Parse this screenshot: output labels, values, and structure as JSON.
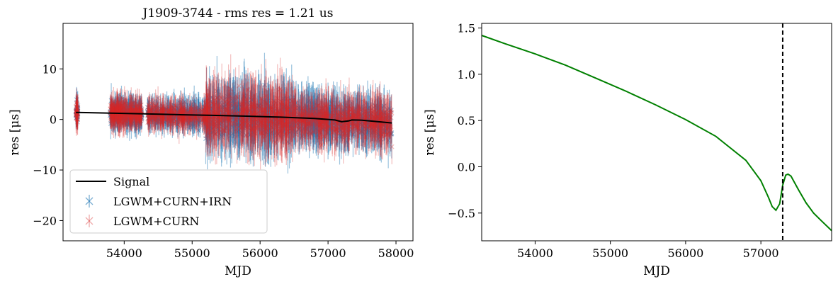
{
  "chart_data": [
    {
      "type": "scatter",
      "title": "J1909-3744 - rms res = 1.21 us",
      "xlabel": "MJD",
      "ylabel": "res [μs]",
      "xlim": [
        53100,
        58250
      ],
      "ylim": [
        -24,
        19
      ],
      "xticks": [
        54000,
        55000,
        56000,
        57000,
        58000
      ],
      "yticks": [
        -20,
        -10,
        0,
        10
      ],
      "grid": false,
      "legend": "lower-left",
      "marker": "x",
      "data_range_mjd": [
        53290,
        57940
      ],
      "scatter_rms_us": 1.21,
      "series": [
        {
          "name": "Signal",
          "kind": "line",
          "color": "#000000",
          "x": [
            53290,
            53800,
            54300,
            54800,
            55300,
            55800,
            56300,
            56800,
            57100,
            57200,
            57300,
            57350,
            57500,
            57940
          ],
          "y": [
            1.4,
            1.25,
            1.1,
            0.95,
            0.8,
            0.65,
            0.45,
            0.2,
            -0.1,
            -0.45,
            -0.3,
            -0.1,
            -0.15,
            -0.7
          ]
        },
        {
          "name": "LGWM+CURN+IRN",
          "kind": "errorbar",
          "color": "#1f77b4"
        },
        {
          "name": "LGWM+CURN",
          "kind": "errorbar",
          "color": "#d62728"
        }
      ]
    },
    {
      "type": "line",
      "title": "",
      "xlabel": "MJD",
      "ylabel": "res [μs]",
      "xlim": [
        53290,
        57940
      ],
      "ylim": [
        -0.8,
        1.55
      ],
      "xticks": [
        54000,
        55000,
        56000,
        57000
      ],
      "yticks": [
        -0.5,
        0.0,
        0.5,
        1.0,
        1.5
      ],
      "grid": false,
      "vline": {
        "x": 57290,
        "style": "dashed",
        "color": "#000000"
      },
      "series": [
        {
          "color": "#008000",
          "x": [
            53290,
            53600,
            54000,
            54400,
            54800,
            55200,
            55600,
            56000,
            56400,
            56800,
            57000,
            57100,
            57150,
            57200,
            57250,
            57290,
            57330,
            57360,
            57400,
            57500,
            57600,
            57700,
            57800,
            57940
          ],
          "y": [
            1.42,
            1.33,
            1.22,
            1.1,
            0.96,
            0.82,
            0.67,
            0.51,
            0.33,
            0.07,
            -0.15,
            -0.33,
            -0.43,
            -0.47,
            -0.4,
            -0.2,
            -0.09,
            -0.08,
            -0.1,
            -0.25,
            -0.39,
            -0.5,
            -0.58,
            -0.69
          ]
        }
      ]
    }
  ]
}
